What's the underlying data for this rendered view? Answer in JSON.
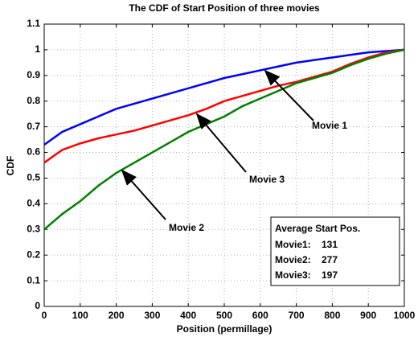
{
  "chart_data": {
    "type": "line",
    "title": "The CDF of Start Position of three movies",
    "x_label": "Position (permillage)",
    "y_label": "CDF",
    "x": [
      0,
      50,
      100,
      150,
      200,
      250,
      300,
      350,
      400,
      450,
      500,
      550,
      600,
      650,
      700,
      750,
      800,
      850,
      900,
      950,
      1000
    ],
    "series": [
      {
        "name": "Movie 1",
        "color": "#0000ff",
        "values": [
          0.63,
          0.68,
          0.71,
          0.74,
          0.77,
          0.79,
          0.81,
          0.83,
          0.85,
          0.87,
          0.89,
          0.905,
          0.92,
          0.935,
          0.95,
          0.96,
          0.97,
          0.98,
          0.99,
          0.995,
          1
        ]
      },
      {
        "name": "Movie 3",
        "color": "#ff0000",
        "values": [
          0.56,
          0.61,
          0.635,
          0.655,
          0.67,
          0.685,
          0.705,
          0.725,
          0.745,
          0.77,
          0.8,
          0.82,
          0.84,
          0.86,
          0.875,
          0.895,
          0.915,
          0.945,
          0.97,
          0.99,
          1
        ]
      },
      {
        "name": "Movie 2",
        "color": "#008000",
        "values": [
          0.3,
          0.36,
          0.41,
          0.47,
          0.52,
          0.56,
          0.6,
          0.64,
          0.68,
          0.71,
          0.74,
          0.78,
          0.81,
          0.84,
          0.87,
          0.89,
          0.91,
          0.94,
          0.965,
          0.985,
          1
        ]
      }
    ],
    "xlim": [
      0,
      1000
    ],
    "xticks": [
      0,
      100,
      200,
      300,
      400,
      500,
      600,
      700,
      800,
      900,
      1000
    ],
    "ylim": [
      0,
      1.1
    ],
    "yticks": [
      0,
      0.1,
      0.2,
      0.3,
      0.4,
      0.5,
      0.6,
      0.7,
      0.8,
      0.9,
      1,
      1.1
    ],
    "grid": true,
    "info_box": {
      "title": "Average Start Pos.",
      "entries": [
        {
          "label": "Movie1:",
          "value": 131
        },
        {
          "label": "Movie2:",
          "value": 277
        },
        {
          "label": "Movie3:",
          "value": 197
        }
      ]
    }
  }
}
